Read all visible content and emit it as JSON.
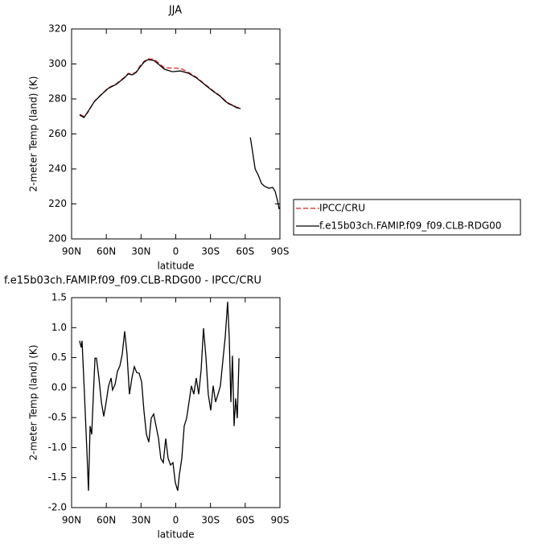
{
  "chart_data": [
    {
      "type": "line",
      "title": "JJA",
      "xlabel": "latitude",
      "ylabel": "2-meter Temp (land) (K)",
      "x": [
        83,
        79.2,
        75.7,
        70.2,
        65.3,
        58.4,
        51.5,
        44.5,
        41.1,
        37.6,
        34.1,
        30.7,
        27.2,
        23.8,
        18.9,
        14.8,
        9.9,
        2.9,
        -4,
        -10.9,
        -17.9,
        -24.8,
        -31.8,
        -38.7,
        -42.2,
        -45.7,
        -49.1,
        -52.6,
        -56.1,
        -60,
        -64.4,
        -66.5,
        -68.6,
        -71.4,
        -74.1,
        -76.9,
        -80.4,
        -83.8,
        -85.9,
        -88,
        -89.4
      ],
      "series": [
        {
          "name": "IPCC/CRU",
          "color": "#e41a1c",
          "style": "dashed",
          "values": [
            271.2,
            270,
            272.5,
            278.8,
            282,
            286.3,
            288.6,
            292.3,
            294.6,
            294.2,
            295.5,
            299,
            301.6,
            302.9,
            302.7,
            300.5,
            297.8,
            297.6,
            297.5,
            295.2,
            292.3,
            288.6,
            284.9,
            281.6,
            279.4,
            277.5,
            276.5,
            275.3,
            274.8,
            null,
            null,
            null,
            null,
            null,
            null,
            null,
            null,
            null,
            null,
            null,
            null
          ]
        },
        {
          "name": "f.e15b03ch.FAMIP.f09_f09.CLB-RDG00",
          "color": "#000000",
          "style": "solid",
          "values": [
            270.8,
            269.4,
            273,
            278.6,
            281.8,
            286,
            288.3,
            292,
            294.3,
            293.8,
            295.2,
            298.4,
            301.2,
            302.5,
            302,
            299.8,
            297,
            295.6,
            296,
            294.7,
            292,
            288.3,
            284.6,
            281.4,
            279,
            277.2,
            276.3,
            275,
            274.5,
            null,
            258,
            249.2,
            240,
            236.3,
            231.7,
            230,
            229,
            229.4,
            227.1,
            221.6,
            217
          ]
        }
      ],
      "xlim": [
        90,
        -90
      ],
      "xticks": [
        {
          "value": 90,
          "label": "90N"
        },
        {
          "value": 60,
          "label": "60N"
        },
        {
          "value": 30,
          "label": "30N"
        },
        0,
        {
          "value": -30,
          "label": "30S"
        },
        {
          "value": -60,
          "label": "60S"
        },
        {
          "value": -90,
          "label": "90S"
        }
      ],
      "ylim": [
        200,
        320
      ],
      "yticks": [
        200,
        220,
        240,
        260,
        280,
        300,
        320
      ],
      "legend": "right"
    },
    {
      "type": "line",
      "title": "f.e15b03ch.FAMIP.f09_f09.CLB-RDG00 - IPCC/CRU",
      "xlabel": "latitude",
      "ylabel": "2-meter Temp (land) (K)",
      "x": [
        83.1,
        81.7,
        81,
        78.9,
        76.8,
        75.4,
        74,
        72.6,
        71.2,
        69.8,
        68.5,
        66.4,
        64.3,
        62.2,
        60.1,
        58,
        55.9,
        54.6,
        52.5,
        50.4,
        48.3,
        46.2,
        44.1,
        42.1,
        40,
        37.9,
        35.8,
        33.7,
        31.6,
        29.5,
        27.5,
        25.4,
        23.3,
        21.2,
        19.1,
        17,
        14.9,
        12.9,
        10.8,
        8.7,
        6.6,
        4.5,
        2.4,
        0.4,
        -1.7,
        -3.1,
        -5.2,
        -7.3,
        -9.4,
        -11.5,
        -13.5,
        -15.6,
        -17.7,
        -19.8,
        -21.9,
        -24,
        -26.1,
        -28.1,
        -30.2,
        -32.3,
        -34.4,
        -36.5,
        -38.6,
        -40.6,
        -42.7,
        -44.8,
        -46.2,
        -47.6,
        -49,
        -50.4,
        -51.8,
        -53.2,
        -54.6
      ],
      "values": [
        0.78,
        0.67,
        0.78,
        -0.11,
        -1.05,
        -1.72,
        -0.64,
        -0.78,
        -0.11,
        0.49,
        0.49,
        0.16,
        -0.24,
        -0.48,
        -0.24,
        0.03,
        0.16,
        -0.04,
        0.05,
        0.27,
        0.36,
        0.56,
        0.94,
        0.56,
        -0.11,
        0.16,
        0.35,
        0.25,
        0.24,
        0.09,
        -0.38,
        -0.78,
        -0.91,
        -0.51,
        -0.44,
        -0.64,
        -0.85,
        -1.18,
        -1.25,
        -0.85,
        -1.18,
        -1.29,
        -1.25,
        -1.58,
        -1.72,
        -1.45,
        -1.18,
        -0.64,
        -0.51,
        -0.24,
        0.03,
        -0.11,
        0.16,
        -0.11,
        0.29,
        0.99,
        0.49,
        -0.11,
        -0.38,
        0.03,
        -0.24,
        -0.11,
        0.03,
        0.43,
        0.83,
        1.43,
        0.83,
        -0.24,
        0.53,
        -0.64,
        -0.18,
        -0.51,
        0.49
      ],
      "color": "#000000",
      "xlim": [
        90,
        -90
      ],
      "xticks": [
        {
          "value": 90,
          "label": "90N"
        },
        {
          "value": 60,
          "label": "60N"
        },
        {
          "value": 30,
          "label": "30N"
        },
        0,
        {
          "value": -30,
          "label": "30S"
        },
        {
          "value": -60,
          "label": "60S"
        },
        {
          "value": -90,
          "label": "90S"
        }
      ],
      "ylim": [
        -2,
        1.5
      ],
      "yticks": [
        {
          "value": -2,
          "label": "-2.0"
        },
        -1.5,
        {
          "value": -1,
          "label": "-1.0"
        },
        -0.5,
        {
          "value": 0,
          "label": "0.0"
        },
        0.5,
        {
          "value": 1,
          "label": "1.0"
        },
        1.5
      ]
    }
  ]
}
